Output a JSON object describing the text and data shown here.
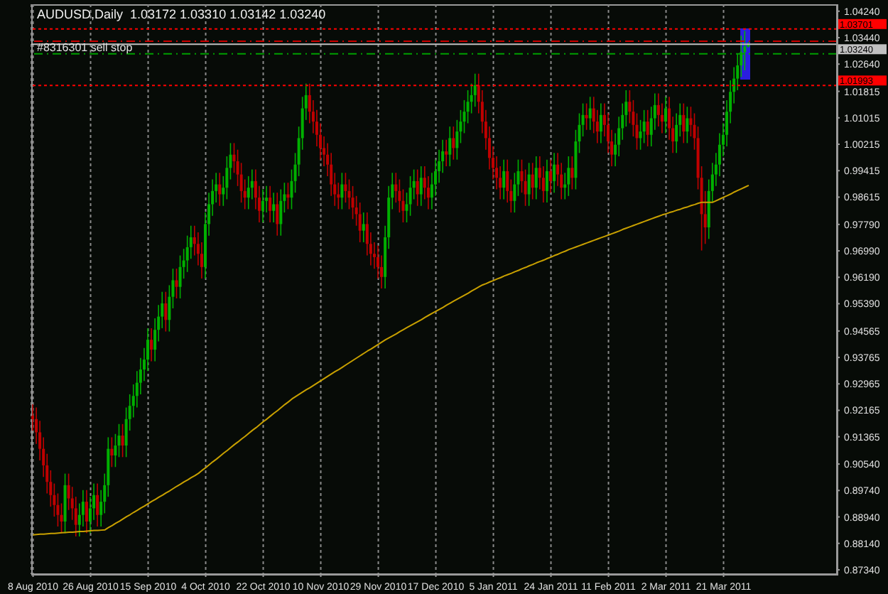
{
  "chart_data": {
    "type": "candlestick",
    "title": "AUDUSD,Daily  1.03172 1.03310 1.03142 1.03240",
    "categories": [
      "8 Aug 2010",
      null,
      null,
      null,
      null,
      null,
      null,
      null,
      null,
      null,
      null,
      null,
      null,
      null,
      null,
      null,
      "26 Aug 2010",
      null,
      null,
      null,
      null,
      null,
      null,
      null,
      null,
      null,
      null,
      null,
      null,
      null,
      null,
      null,
      "15 Sep 2010",
      null,
      null,
      null,
      null,
      null,
      null,
      null,
      null,
      null,
      null,
      null,
      null,
      null,
      null,
      null,
      "4 Oct 2010",
      null,
      null,
      null,
      null,
      null,
      null,
      null,
      null,
      null,
      null,
      null,
      null,
      null,
      null,
      null,
      "22 Oct 2010",
      null,
      null,
      null,
      null,
      null,
      null,
      null,
      null,
      null,
      null,
      null,
      null,
      null,
      null,
      null,
      "10 Nov 2010",
      null,
      null,
      null,
      null,
      null,
      null,
      null,
      null,
      null,
      null,
      null,
      null,
      null,
      null,
      null,
      "29 Nov 2010",
      null,
      null,
      null,
      null,
      null,
      null,
      null,
      null,
      null,
      null,
      null,
      null,
      null,
      null,
      null,
      "17 Dec 2010",
      null,
      null,
      null,
      null,
      null,
      null,
      null,
      null,
      null,
      null,
      null,
      null,
      null,
      null,
      null,
      "5 Jan 2011",
      null,
      null,
      null,
      null,
      null,
      null,
      null,
      null,
      null,
      null,
      null,
      null,
      null,
      null,
      null,
      "24 Jan 2011",
      null,
      null,
      null,
      null,
      null,
      null,
      null,
      null,
      null,
      null,
      null,
      null,
      null,
      null,
      null,
      "11 Feb 2011",
      null,
      null,
      null,
      null,
      null,
      null,
      null,
      null,
      null,
      null,
      null,
      null,
      null,
      null,
      null,
      "2 Mar 2011",
      null,
      null,
      null,
      null,
      null,
      null,
      null,
      null,
      null,
      null,
      null,
      null,
      null,
      null,
      null,
      "21 Mar 2011",
      null,
      null,
      null,
      null,
      null,
      null,
      null,
      null,
      null,
      null,
      null,
      null,
      null,
      null,
      null,
      null,
      null,
      null,
      null,
      null,
      null,
      null,
      null,
      null,
      null,
      null,
      null,
      null,
      null,
      null,
      null
    ],
    "series": [
      {
        "type": "candlestick",
        "ohlc": [
          [
            0.92,
            0.9235,
            0.9155,
            0.919
          ],
          [
            0.919,
            0.9225,
            0.9115,
            0.915
          ],
          [
            0.915,
            0.9185,
            0.9065,
            0.91
          ],
          [
            0.91,
            0.9135,
            0.9015,
            0.905
          ],
          [
            0.905,
            0.9085,
            0.8965,
            0.9
          ],
          [
            0.9,
            0.9035,
            0.8925,
            0.896
          ],
          [
            0.896,
            0.8995,
            0.8895,
            0.893
          ],
          [
            0.893,
            0.8965,
            0.8865,
            0.89
          ],
          [
            0.89,
            0.8935,
            0.8845,
            0.888
          ],
          [
            0.888,
            0.9025,
            0.8845,
            0.899
          ],
          [
            0.899,
            0.9025,
            0.8915,
            0.895
          ],
          [
            0.895,
            0.8985,
            0.8885,
            0.892
          ],
          [
            0.892,
            0.8955,
            0.8835,
            0.887
          ],
          [
            0.887,
            0.8935,
            0.8835,
            0.89
          ],
          [
            0.89,
            0.8975,
            0.8865,
            0.894
          ],
          [
            0.894,
            0.8975,
            0.8845,
            0.888
          ],
          [
            0.888,
            0.8955,
            0.8845,
            0.892
          ],
          [
            0.892,
            0.8995,
            0.8885,
            0.896
          ],
          [
            0.896,
            0.8995,
            0.8865,
            0.89
          ],
          [
            0.89,
            0.8975,
            0.8865,
            0.894
          ],
          [
            0.894,
            0.9025,
            0.8905,
            0.899
          ],
          [
            0.899,
            0.9135,
            0.8955,
            0.91
          ],
          [
            0.91,
            0.9135,
            0.9045,
            0.908
          ],
          [
            0.908,
            0.9145,
            0.9045,
            0.911
          ],
          [
            0.911,
            0.9175,
            0.9075,
            0.914
          ],
          [
            0.914,
            0.9175,
            0.9075,
            0.911
          ],
          [
            0.911,
            0.9225,
            0.9075,
            0.919
          ],
          [
            0.919,
            0.9265,
            0.9155,
            0.923
          ],
          [
            0.923,
            0.9295,
            0.9195,
            0.926
          ],
          [
            0.926,
            0.9335,
            0.9225,
            0.93
          ],
          [
            0.93,
            0.9375,
            0.9265,
            0.934
          ],
          [
            0.934,
            0.9405,
            0.9305,
            0.937
          ],
          [
            0.937,
            0.9465,
            0.9335,
            0.943
          ],
          [
            0.943,
            0.9465,
            0.9365,
            0.94
          ],
          [
            0.94,
            0.9495,
            0.9365,
            0.946
          ],
          [
            0.946,
            0.9535,
            0.9425,
            0.95
          ],
          [
            0.95,
            0.9575,
            0.9465,
            0.954
          ],
          [
            0.954,
            0.9575,
            0.9455,
            0.949
          ],
          [
            0.949,
            0.9595,
            0.9455,
            0.956
          ],
          [
            0.956,
            0.9645,
            0.9525,
            0.961
          ],
          [
            0.961,
            0.9645,
            0.9555,
            0.959
          ],
          [
            0.959,
            0.9685,
            0.9555,
            0.965
          ],
          [
            0.965,
            0.9705,
            0.9615,
            0.967
          ],
          [
            0.967,
            0.9745,
            0.9635,
            0.971
          ],
          [
            0.971,
            0.9775,
            0.9675,
            0.974
          ],
          [
            0.974,
            0.9775,
            0.9685,
            0.972
          ],
          [
            0.972,
            0.9755,
            0.9655,
            0.969
          ],
          [
            0.969,
            0.9725,
            0.9615,
            0.965
          ],
          [
            0.965,
            0.9815,
            0.9615,
            0.978
          ],
          [
            0.978,
            0.9875,
            0.9745,
            0.984
          ],
          [
            0.984,
            0.9915,
            0.9805,
            0.988
          ],
          [
            0.988,
            0.9935,
            0.9845,
            0.99
          ],
          [
            0.99,
            0.9935,
            0.9835,
            0.987
          ],
          [
            0.987,
            0.9925,
            0.9835,
            0.989
          ],
          [
            0.989,
            0.9985,
            0.9855,
            0.995
          ],
          [
            0.995,
            1.0025,
            0.9915,
            0.999
          ],
          [
            0.999,
            1.0025,
            0.9935,
            0.997
          ],
          [
            0.997,
            1.0005,
            0.9895,
            0.993
          ],
          [
            0.993,
            0.9965,
            0.9845,
            0.988
          ],
          [
            0.988,
            0.9915,
            0.9825,
            0.986
          ],
          [
            0.986,
            0.9925,
            0.9825,
            0.989
          ],
          [
            0.989,
            0.9945,
            0.9855,
            0.991
          ],
          [
            0.991,
            0.9945,
            0.9825,
            0.986
          ],
          [
            0.986,
            0.9895,
            0.9785,
            0.982
          ],
          [
            0.982,
            0.9885,
            0.9785,
            0.985
          ],
          [
            0.985,
            0.9895,
            0.9815,
            0.986
          ],
          [
            0.986,
            0.9895,
            0.9785,
            0.982
          ],
          [
            0.982,
            0.9875,
            0.9785,
            0.984
          ],
          [
            0.984,
            0.9875,
            0.9745,
            0.978
          ],
          [
            0.978,
            0.9885,
            0.9745,
            0.985
          ],
          [
            0.985,
            0.9905,
            0.9815,
            0.987
          ],
          [
            0.987,
            0.9905,
            0.9825,
            0.986
          ],
          [
            0.986,
            0.9945,
            0.9825,
            0.991
          ],
          [
            0.991,
            0.9995,
            0.9875,
            0.996
          ],
          [
            0.996,
            1.0075,
            0.9925,
            1.004
          ],
          [
            1.004,
            1.0165,
            1.0005,
            1.013
          ],
          [
            1.013,
            1.0205,
            1.0095,
            1.017
          ],
          [
            1.017,
            1.0205,
            1.0085,
            1.012
          ],
          [
            1.012,
            1.0155,
            1.0055,
            1.009
          ],
          [
            1.009,
            1.0125,
            1.0015,
            1.005
          ],
          [
            1.005,
            1.0085,
            0.9975,
            1.001
          ],
          [
            1.001,
            1.0045,
            0.9955,
            0.999
          ],
          [
            0.999,
            1.0025,
            0.9925,
            0.996
          ],
          [
            0.996,
            0.9995,
            0.9865,
            0.99
          ],
          [
            0.99,
            0.9935,
            0.9835,
            0.987
          ],
          [
            0.987,
            0.9905,
            0.9825,
            0.986
          ],
          [
            0.986,
            0.9935,
            0.9825,
            0.99
          ],
          [
            0.99,
            0.9935,
            0.9845,
            0.988
          ],
          [
            0.988,
            0.9915,
            0.9825,
            0.986
          ],
          [
            0.986,
            0.9895,
            0.9795,
            0.983
          ],
          [
            0.983,
            0.9865,
            0.9775,
            0.981
          ],
          [
            0.981,
            0.9845,
            0.9725,
            0.976
          ],
          [
            0.976,
            0.9815,
            0.9725,
            0.978
          ],
          [
            0.978,
            0.9815,
            0.9685,
            0.972
          ],
          [
            0.972,
            0.9755,
            0.9655,
            0.969
          ],
          [
            0.969,
            0.9725,
            0.9645,
            0.968
          ],
          [
            0.968,
            0.9715,
            0.9615,
            0.965
          ],
          [
            0.965,
            0.9685,
            0.9585,
            0.962
          ],
          [
            0.962,
            0.9775,
            0.9585,
            0.974
          ],
          [
            0.974,
            0.9895,
            0.9705,
            0.986
          ],
          [
            0.986,
            0.9935,
            0.9825,
            0.99
          ],
          [
            0.99,
            0.9935,
            0.9845,
            0.988
          ],
          [
            0.988,
            0.9915,
            0.9815,
            0.985
          ],
          [
            0.985,
            0.9885,
            0.9785,
            0.982
          ],
          [
            0.982,
            0.9875,
            0.9785,
            0.984
          ],
          [
            0.984,
            0.9925,
            0.9805,
            0.989
          ],
          [
            0.989,
            0.9945,
            0.9855,
            0.991
          ],
          [
            0.991,
            0.9945,
            0.9835,
            0.987
          ],
          [
            0.987,
            0.9955,
            0.9835,
            0.992
          ],
          [
            0.992,
            0.9955,
            0.9855,
            0.989
          ],
          [
            0.989,
            0.9925,
            0.9825,
            0.986
          ],
          [
            0.986,
            0.9935,
            0.9825,
            0.99
          ],
          [
            0.99,
            0.9975,
            0.9865,
            0.994
          ],
          [
            0.994,
            1.0005,
            0.9905,
            0.997
          ],
          [
            0.997,
            1.0035,
            0.9935,
            1.0
          ],
          [
            1.0,
            1.0035,
            0.9955,
            0.999
          ],
          [
            0.999,
            1.0075,
            0.9955,
            1.004
          ],
          [
            1.004,
            1.0075,
            0.9975,
            1.001
          ],
          [
            1.001,
            1.0095,
            0.9975,
            1.006
          ],
          [
            1.006,
            1.0125,
            1.0025,
            1.009
          ],
          [
            1.009,
            1.0155,
            1.0055,
            1.012
          ],
          [
            1.012,
            1.0185,
            1.0085,
            1.015
          ],
          [
            1.015,
            1.0205,
            1.0115,
            1.017
          ],
          [
            1.017,
            1.0235,
            1.0135,
            1.02
          ],
          [
            1.02,
            1.0235,
            1.0115,
            1.015
          ],
          [
            1.015,
            1.0185,
            1.0055,
            1.009
          ],
          [
            1.009,
            1.0125,
            1.0005,
            1.004
          ],
          [
            1.004,
            1.0075,
            0.9945,
            0.998
          ],
          [
            0.998,
            1.0015,
            0.9915,
            0.995
          ],
          [
            0.995,
            0.9985,
            0.9885,
            0.992
          ],
          [
            0.992,
            0.9955,
            0.9855,
            0.989
          ],
          [
            0.989,
            0.9975,
            0.9855,
            0.994
          ],
          [
            0.994,
            0.9975,
            0.9845,
            0.988
          ],
          [
            0.988,
            0.9915,
            0.9815,
            0.985
          ],
          [
            0.985,
            0.9935,
            0.9815,
            0.99
          ],
          [
            0.99,
            0.9975,
            0.9865,
            0.994
          ],
          [
            0.994,
            0.9975,
            0.9875,
            0.991
          ],
          [
            0.991,
            0.9945,
            0.9835,
            0.987
          ],
          [
            0.987,
            0.9965,
            0.9835,
            0.993
          ],
          [
            0.993,
            0.9965,
            0.9855,
            0.989
          ],
          [
            0.989,
            0.9985,
            0.9855,
            0.995
          ],
          [
            0.995,
            0.9985,
            0.9885,
            0.992
          ],
          [
            0.992,
            0.9955,
            0.9845,
            0.988
          ],
          [
            0.988,
            0.9975,
            0.9845,
            0.994
          ],
          [
            0.994,
            0.9975,
            0.9875,
            0.991
          ],
          [
            0.991,
            0.9995,
            0.9875,
            0.996
          ],
          [
            0.996,
            0.9995,
            0.9895,
            0.993
          ],
          [
            0.993,
            0.9965,
            0.9855,
            0.989
          ],
          [
            0.989,
            0.9935,
            0.9855,
            0.99
          ],
          [
            0.99,
            0.9985,
            0.9865,
            0.995
          ],
          [
            0.995,
            0.9985,
            0.9885,
            0.992
          ],
          [
            0.992,
            1.0065,
            0.9885,
            1.003
          ],
          [
            1.003,
            1.0115,
            0.9995,
            1.008
          ],
          [
            1.008,
            1.0145,
            1.0045,
            1.011
          ],
          [
            1.011,
            1.0145,
            1.0065,
            1.01
          ],
          [
            1.01,
            1.0165,
            1.0065,
            1.013
          ],
          [
            1.013,
            1.0165,
            1.0055,
            1.009
          ],
          [
            1.009,
            1.0125,
            1.0025,
            1.006
          ],
          [
            1.006,
            1.0145,
            1.0025,
            1.011
          ],
          [
            1.011,
            1.0145,
            1.0045,
            1.008
          ],
          [
            1.008,
            1.0115,
            0.9995,
            1.003
          ],
          [
            1.003,
            1.0065,
            0.9955,
            0.999
          ],
          [
            0.999,
            1.0055,
            0.9955,
            1.002
          ],
          [
            1.002,
            1.0105,
            0.9985,
            1.007
          ],
          [
            1.007,
            1.0145,
            1.0035,
            1.011
          ],
          [
            1.011,
            1.0185,
            1.0075,
            1.015
          ],
          [
            1.015,
            1.0185,
            1.0085,
            1.012
          ],
          [
            1.012,
            1.0155,
            1.0045,
            1.008
          ],
          [
            1.008,
            1.0115,
            1.0005,
            1.004
          ],
          [
            1.004,
            1.0095,
            1.0005,
            1.006
          ],
          [
            1.006,
            1.0125,
            1.0025,
            1.009
          ],
          [
            1.009,
            1.0125,
            1.0015,
            1.005
          ],
          [
            1.005,
            1.0135,
            1.0015,
            1.01
          ],
          [
            1.01,
            1.0175,
            1.0065,
            1.014
          ],
          [
            1.014,
            1.0175,
            1.0075,
            1.011
          ],
          [
            1.011,
            1.0145,
            1.0055,
            1.009
          ],
          [
            1.009,
            1.0165,
            1.0055,
            1.013
          ],
          [
            1.013,
            1.0165,
            1.0035,
            1.007
          ],
          [
            1.007,
            1.0105,
            0.9995,
            1.003
          ],
          [
            1.003,
            1.0115,
            0.9995,
            1.008
          ],
          [
            1.008,
            1.0145,
            1.0045,
            1.011
          ],
          [
            1.011,
            1.0145,
            1.0025,
            1.006
          ],
          [
            1.006,
            1.0135,
            1.0025,
            1.01
          ],
          [
            1.01,
            1.0135,
            1.0045,
            1.008
          ],
          [
            1.008,
            1.0115,
            1.0005,
            1.004
          ],
          [
            1.004,
            1.0075,
            0.9885,
            0.992
          ],
          [
            0.992,
            0.9955,
            0.97,
            0.981
          ],
          [
            0.981,
            0.988,
            0.972,
            0.977
          ],
          [
            0.977,
            0.9915,
            0.9735,
            0.988
          ],
          [
            0.988,
            0.9965,
            0.9845,
            0.993
          ],
          [
            0.993,
            0.9995,
            0.9895,
            0.996
          ],
          [
            0.996,
            1.0055,
            0.9925,
            1.002
          ],
          [
            1.002,
            1.0085,
            0.9985,
            1.005
          ],
          [
            1.005,
            1.0155,
            1.0015,
            1.012
          ],
          [
            1.012,
            1.0215,
            1.0085,
            1.018
          ],
          [
            1.018,
            1.0255,
            1.0145,
            1.022
          ],
          [
            1.022,
            1.0295,
            1.0185,
            1.026
          ],
          [
            1.026,
            1.035,
            1.0225,
            1.03
          ],
          [
            1.03,
            1.0365,
            1.0245,
            1.0317
          ],
          [
            1.03172,
            1.0331,
            1.03142,
            1.0324
          ],
          null,
          null,
          null,
          null,
          null,
          null,
          null,
          null,
          null,
          null,
          null,
          null,
          null,
          null,
          null,
          null,
          null,
          null,
          null,
          null,
          null,
          null,
          null,
          null
        ],
        "colors": [
          "#c00000",
          "#c00000",
          "#c00000",
          "#c00000",
          "#c00000",
          "#c00000",
          "#c00000",
          "#c00000",
          "#c00000",
          "#00b000",
          "#c00000",
          "#c00000",
          "#c00000",
          "#00b000",
          "#00b000",
          "#c00000",
          "#00b000",
          "#00b000",
          "#c00000",
          "#00b000",
          "#00b000",
          "#00b000",
          "#c00000",
          "#00b000",
          "#00b000",
          "#c00000",
          "#00b000",
          "#00b000",
          "#00b000",
          "#00b000",
          "#00b000",
          "#00b000",
          "#00b000",
          "#c00000",
          "#00b000",
          "#00b000",
          "#00b000",
          "#c00000",
          "#00b000",
          "#00b000",
          "#c00000",
          "#00b000",
          "#00b000",
          "#00b000",
          "#00b000",
          "#c00000",
          "#c00000",
          "#c00000",
          "#00b000",
          "#00b000",
          "#00b000",
          "#00b000",
          "#c00000",
          "#00b000",
          "#00b000",
          "#00b000",
          "#c00000",
          "#c00000",
          "#c00000",
          "#c00000",
          "#00b000",
          "#00b000",
          "#c00000",
          "#c00000",
          "#00b000",
          "#00b000",
          "#c00000",
          "#00b000",
          "#c00000",
          "#00b000",
          "#00b000",
          "#c00000",
          "#00b000",
          "#00b000",
          "#00b000",
          "#00b000",
          "#00b000",
          "#c00000",
          "#c00000",
          "#c00000",
          "#c00000",
          "#c00000",
          "#c00000",
          "#c00000",
          "#c00000",
          "#c00000",
          "#00b000",
          "#c00000",
          "#c00000",
          "#c00000",
          "#c00000",
          "#c00000",
          "#00b000",
          "#c00000",
          "#c00000",
          "#c00000",
          "#c00000",
          "#c00000",
          "#00b000",
          "#00b000",
          "#00b000",
          "#c00000",
          "#c00000",
          "#c00000",
          "#00b000",
          "#00b000",
          "#00b000",
          "#c00000",
          "#00b000",
          "#c00000",
          "#c00000",
          "#00b000",
          "#00b000",
          "#00b000",
          "#00b000",
          "#c00000",
          "#00b000",
          "#c00000",
          "#00b000",
          "#00b000",
          "#00b000",
          "#00b000",
          "#00b000",
          "#00b000",
          "#c00000",
          "#c00000",
          "#c00000",
          "#c00000",
          "#c00000",
          "#c00000",
          "#c00000",
          "#00b000",
          "#c00000",
          "#c00000",
          "#00b000",
          "#00b000",
          "#c00000",
          "#c00000",
          "#00b000",
          "#c00000",
          "#00b000",
          "#c00000",
          "#c00000",
          "#00b000",
          "#c00000",
          "#00b000",
          "#c00000",
          "#c00000",
          "#00b000",
          "#00b000",
          "#c00000",
          "#00b000",
          "#00b000",
          "#00b000",
          "#c00000",
          "#00b000",
          "#c00000",
          "#c00000",
          "#00b000",
          "#c00000",
          "#c00000",
          "#c00000",
          "#00b000",
          "#00b000",
          "#00b000",
          "#00b000",
          "#c00000",
          "#c00000",
          "#c00000",
          "#00b000",
          "#00b000",
          "#c00000",
          "#00b000",
          "#00b000",
          "#c00000",
          "#c00000",
          "#00b000",
          "#c00000",
          "#c00000",
          "#00b000",
          "#00b000",
          "#c00000",
          "#00b000",
          "#c00000",
          "#c00000",
          "#c00000",
          "#c00000",
          "#c00000",
          "#00b000",
          "#00b000",
          "#00b000",
          "#00b000",
          "#00b000",
          "#00b000",
          "#00b000",
          "#00b000",
          "#00b000",
          "#00b000",
          "#00b000",
          "#00b000",
          null,
          null,
          null,
          null,
          null,
          null,
          null,
          null,
          null,
          null,
          null,
          null,
          null,
          null,
          null,
          null,
          null,
          null,
          null,
          null,
          null,
          null,
          null,
          null
        ]
      },
      {
        "type": "line",
        "color": "#c8a000",
        "values": [
          0.884,
          0.8841,
          0.8842,
          0.8842,
          0.8843,
          0.8844,
          0.8844,
          0.8845,
          0.8846,
          0.8847,
          0.8848,
          0.8848,
          0.8849,
          0.885,
          0.885,
          0.8851,
          0.8852,
          0.8853,
          0.8853,
          0.8854,
          0.8855,
          0.8862,
          0.8868,
          0.8875,
          0.8881,
          0.8888,
          0.8895,
          0.8901,
          0.8908,
          0.8914,
          0.8921,
          0.8927,
          0.8934,
          0.8941,
          0.8947,
          0.8954,
          0.896,
          0.8967,
          0.8973,
          0.898,
          0.8987,
          0.8993,
          0.9,
          0.9006,
          0.9013,
          0.9019,
          0.9026,
          0.9035,
          0.9043,
          0.9052,
          0.9061,
          0.9069,
          0.9078,
          0.9087,
          0.9095,
          0.9104,
          0.9113,
          0.9121,
          0.913,
          0.9138,
          0.9147,
          0.9156,
          0.9164,
          0.9173,
          0.9182,
          0.919,
          0.9199,
          0.9208,
          0.9216,
          0.9225,
          0.9234,
          0.9242,
          0.9251,
          0.9258,
          0.9265,
          0.9272,
          0.9279,
          0.9285,
          0.9292,
          0.9299,
          0.9306,
          0.9313,
          0.932,
          0.9327,
          0.9334,
          0.934,
          0.9347,
          0.9354,
          0.9361,
          0.9368,
          0.9375,
          0.9382,
          0.9389,
          0.9396,
          0.9402,
          0.9409,
          0.9416,
          0.9423,
          0.943,
          0.9436,
          0.9442,
          0.9448,
          0.9455,
          0.9461,
          0.9467,
          0.9473,
          0.9479,
          0.9485,
          0.9491,
          0.9498,
          0.9504,
          0.951,
          0.9516,
          0.9522,
          0.9528,
          0.9535,
          0.9541,
          0.9547,
          0.9553,
          0.9559,
          0.9565,
          0.9571,
          0.9578,
          0.9584,
          0.959,
          0.9596,
          0.96,
          0.9605,
          0.9609,
          0.9614,
          0.9618,
          0.9623,
          0.9627,
          0.9631,
          0.9636,
          0.964,
          0.9645,
          0.9649,
          0.9654,
          0.9658,
          0.9663,
          0.9667,
          0.9671,
          0.9676,
          0.968,
          0.9685,
          0.9689,
          0.9694,
          0.9698,
          0.9703,
          0.9707,
          0.9711,
          0.9715,
          0.9719,
          0.9723,
          0.9727,
          0.9731,
          0.9735,
          0.9739,
          0.9743,
          0.9747,
          0.9751,
          0.9755,
          0.9759,
          0.9764,
          0.9768,
          0.9772,
          0.9776,
          0.978,
          0.9784,
          0.9788,
          0.9792,
          0.9796,
          0.98,
          0.9804,
          0.9808,
          0.9811,
          0.9815,
          0.9818,
          0.9822,
          0.9825,
          0.9829,
          0.9832,
          0.9836,
          0.9839,
          0.9843,
          0.9846,
          0.9846,
          0.9846,
          0.9846,
          0.9851,
          0.9856,
          0.9861,
          0.9866,
          0.9871,
          0.9877,
          0.9882,
          0.9887,
          0.9892,
          0.9897,
          null,
          null,
          null,
          null,
          null,
          null,
          null,
          null,
          null,
          null,
          null,
          null,
          null,
          null,
          null,
          null,
          null,
          null,
          null,
          null,
          null,
          null,
          null,
          null
        ]
      }
    ],
    "ylim": [
      0.8721,
      1.0445
    ],
    "yticks": [
      {
        "value": 1.0424,
        "label": "1.04240"
      },
      {
        "value": 1.0344,
        "label": "1.03440"
      },
      {
        "value": 1.0264,
        "label": "1.02640"
      },
      1.01815,
      1.01015,
      1.00215,
      0.99415,
      0.98615,
      {
        "value": 0.9779,
        "label": "0.97790"
      },
      {
        "value": 0.9699,
        "label": "0.96990"
      },
      {
        "value": 0.9619,
        "label": "0.96190"
      },
      {
        "value": 0.9539,
        "label": "0.95390"
      },
      0.94565,
      0.93765,
      0.92965,
      0.92165,
      0.91365,
      {
        "value": 0.9054,
        "label": "0.90540"
      },
      {
        "value": 0.8974,
        "label": "0.89740"
      },
      {
        "value": 0.8894,
        "label": "0.88940"
      },
      {
        "value": 0.8814,
        "label": "0.88140"
      },
      {
        "value": 0.8734,
        "label": "0.87340"
      }
    ],
    "ref_lines": [
      {
        "axis": "y",
        "value": 1.03701,
        "label": "1.03701",
        "color": "#ff0000",
        "line_style": "dotted"
      },
      {
        "axis": "y",
        "value": 1.0333,
        "color": "#cc0000",
        "line_style": "dashed"
      },
      {
        "axis": "y",
        "value": 1.0324,
        "label": "1.03240",
        "color": "#c0c0c0",
        "line_style": "solid"
      },
      {
        "axis": "y",
        "value": 1.0295,
        "label": "#8316301 sell stop",
        "color": "#00a000",
        "line_style": "dashed"
      },
      {
        "axis": "y",
        "value": 1.01993,
        "label": "1.01993",
        "color": "#ff0000",
        "line_style": "dotted"
      }
    ],
    "grid": "x"
  }
}
